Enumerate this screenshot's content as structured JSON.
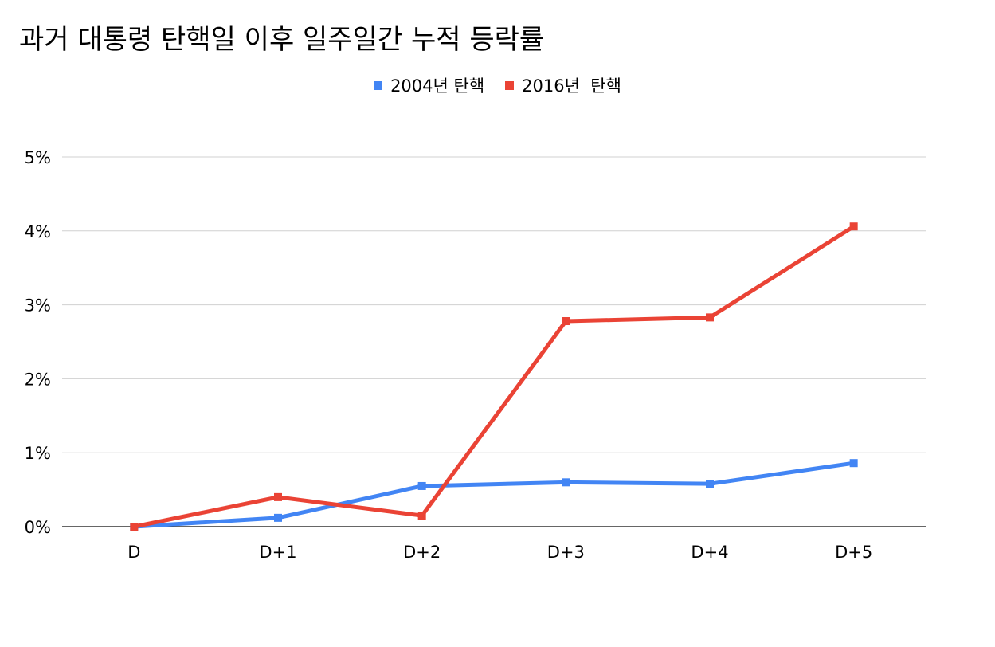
{
  "chart_data": {
    "type": "line",
    "title": "과거 대통령 탄핵일 이후 일주일간 누적 등락률",
    "categories": [
      "D",
      "D+1",
      "D+2",
      "D+3",
      "D+4",
      "D+5"
    ],
    "series": [
      {
        "name": "2004년 탄핵",
        "color": "#4285f4",
        "values": [
          0.0,
          0.12,
          0.55,
          0.6,
          0.58,
          0.86
        ]
      },
      {
        "name": "2016년  탄핵",
        "color": "#ea4335",
        "values": [
          0.0,
          0.4,
          0.15,
          2.78,
          2.83,
          4.06
        ]
      }
    ],
    "ylim": [
      0,
      5
    ],
    "yticks": [
      "0%",
      "1%",
      "2%",
      "3%",
      "4%",
      "5%"
    ],
    "grid": true,
    "legend_position": "top-center",
    "xlabel": "",
    "ylabel": ""
  }
}
